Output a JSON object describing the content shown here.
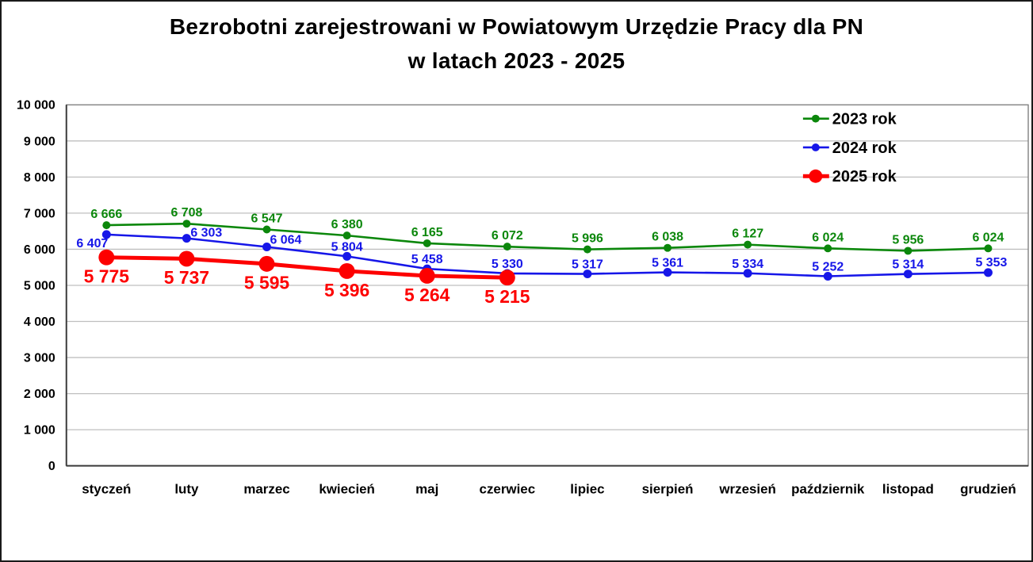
{
  "frame": {
    "background": "#ffffff",
    "border_color": "#1a1a1a"
  },
  "title": {
    "line1": "Bezrobotni zarejestrowani w Powiatowym Urzędzie Pracy dla PN",
    "line2": "w latach 2023 - 2025"
  },
  "chart_data": {
    "type": "line",
    "title": "Bezrobotni zarejestrowani w Powiatowym Urzędzie Pracy dla PN w latach 2023 - 2025",
    "categories": [
      "styczeń",
      "luty",
      "marzec",
      "kwiecień",
      "maj",
      "czerwiec",
      "lipiec",
      "sierpień",
      "wrzesień",
      "październik",
      "listopad",
      "grudzień"
    ],
    "series": [
      {
        "name": "2023 rok",
        "color": "#0b870b",
        "values": [
          6666,
          6708,
          6547,
          6380,
          6165,
          6072,
          5996,
          6038,
          6127,
          6024,
          5956,
          6024
        ]
      },
      {
        "name": "2024 rok",
        "color": "#1616e8",
        "values": [
          6407,
          6303,
          6064,
          5804,
          5458,
          5330,
          5317,
          5361,
          5334,
          5252,
          5314,
          5353
        ]
      },
      {
        "name": "2025 rok",
        "color": "#fd0000",
        "values": [
          5775,
          5737,
          5595,
          5396,
          5264,
          5215
        ]
      }
    ],
    "data_labels": {
      "shown": true,
      "format": "space thousands separator",
      "series_2023": [
        "6 666",
        "6 708",
        "6 547",
        "6 380",
        "6 165",
        "6 072",
        "5 996",
        "6 038",
        "6 127",
        "6 024",
        "5 956",
        "6 024"
      ],
      "series_2024": [
        "6 407",
        "6 303",
        "6 064",
        "5 804",
        "5 458",
        "5 330",
        "5 317",
        "5 361",
        "5 334",
        "5 252",
        "5 314",
        "5 353"
      ],
      "series_2025": [
        "5 775",
        "5 737",
        "5 595",
        "5 396",
        "5 264",
        "5 215"
      ]
    },
    "y_axis": {
      "min": 0,
      "max": 10000,
      "step": 1000,
      "tick_labels": [
        "0",
        "1 000",
        "2 000",
        "3 000",
        "4 000",
        "5 000",
        "6 000",
        "7 000",
        "8 000",
        "9 000",
        "10 000"
      ]
    },
    "legend": {
      "position": "top-right",
      "entries": [
        "2023 rok",
        "2024 rok",
        "2025 rok"
      ]
    },
    "grid": true,
    "colors": {
      "gridline": "#bfbfbf",
      "plot_border": "#808080",
      "axis": "#3a3a3a",
      "text": "#000000"
    }
  }
}
